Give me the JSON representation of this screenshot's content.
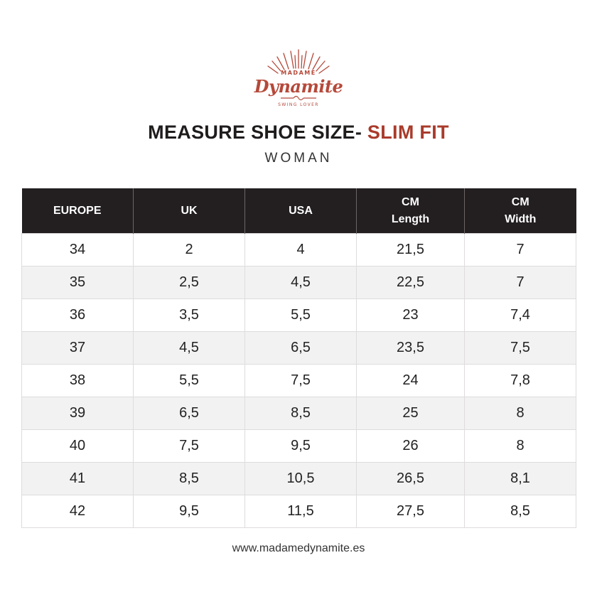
{
  "logo": {
    "top_text": "MADAME",
    "brand": "Dynamite",
    "tagline": "SWING LOVER",
    "color": "#b5493a"
  },
  "heading": {
    "title_main": "MEASURE SHOE SIZE-",
    "title_accent": "SLIM FIT",
    "accent_color": "#a93b2b",
    "subtitle": "WOMAN"
  },
  "table": {
    "headers": [
      [
        "EUROPE"
      ],
      [
        "UK"
      ],
      [
        "USA"
      ],
      [
        "CM",
        "Length"
      ],
      [
        "CM",
        "Width"
      ]
    ],
    "rows": [
      [
        "34",
        "2",
        "4",
        "21,5",
        "7"
      ],
      [
        "35",
        "2,5",
        "4,5",
        "22,5",
        "7"
      ],
      [
        "36",
        "3,5",
        "5,5",
        "23",
        "7,4"
      ],
      [
        "37",
        "4,5",
        "6,5",
        "23,5",
        "7,5"
      ],
      [
        "38",
        "5,5",
        "7,5",
        "24",
        "7,8"
      ],
      [
        "39",
        "6,5",
        "8,5",
        "25",
        "8"
      ],
      [
        "40",
        "7,5",
        "9,5",
        "26",
        "8"
      ],
      [
        "41",
        "8,5",
        "10,5",
        "26,5",
        "8,1"
      ],
      [
        "42",
        "9,5",
        "11,5",
        "27,5",
        "8,5"
      ]
    ],
    "header_bg": "#231f20",
    "stripe_bg": "#f3f2f2"
  },
  "footer": {
    "website": "www.madamedynamite.es"
  }
}
